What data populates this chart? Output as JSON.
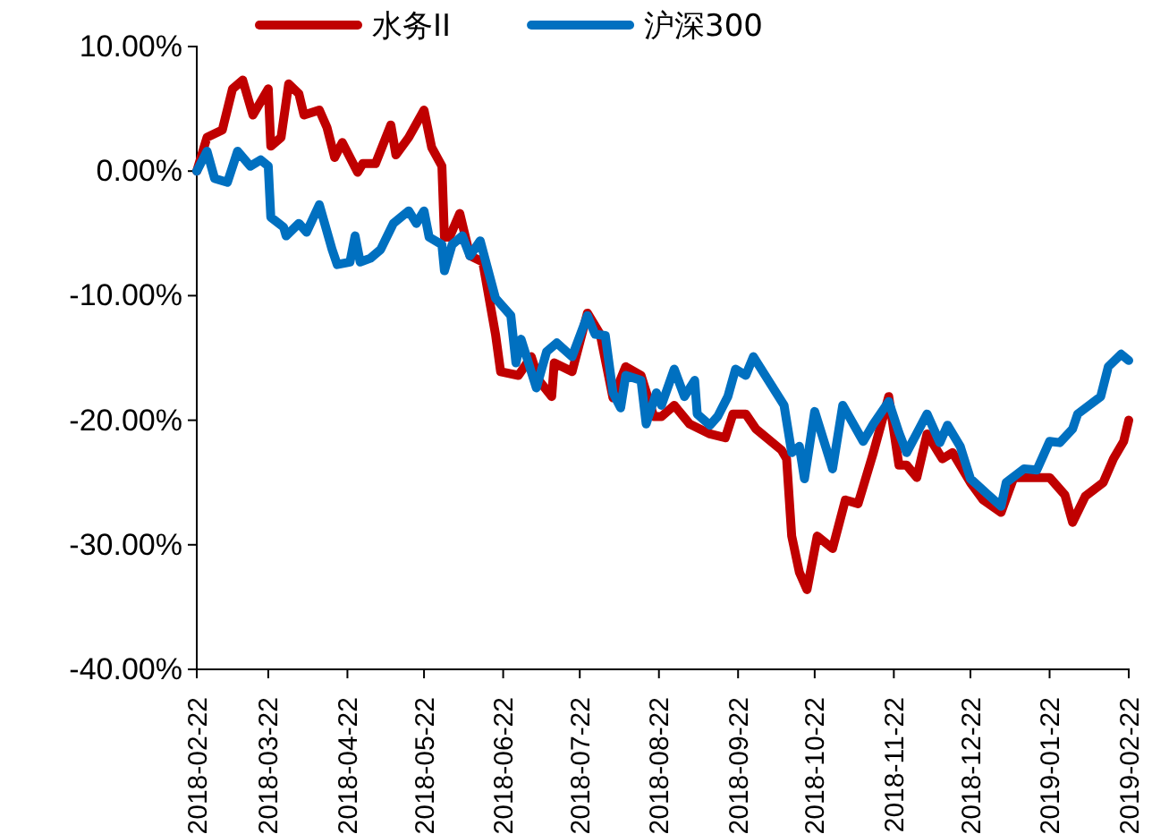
{
  "chart_data": {
    "type": "line",
    "xlim": [
      "2018-02-22",
      "2019-02-22"
    ],
    "xticks": [
      "2018-02-22",
      "2018-03-22",
      "2018-04-22",
      "2018-05-22",
      "2018-06-22",
      "2018-07-22",
      "2018-08-22",
      "2018-09-22",
      "2018-10-22",
      "2018-11-22",
      "2018-12-22",
      "2019-01-22",
      "2019-02-22"
    ],
    "ylim": [
      -40,
      10
    ],
    "yticks": [
      {
        "value": 10,
        "label": "10.00%"
      },
      {
        "value": 0,
        "label": "0.00%"
      },
      {
        "value": -10,
        "label": "-10.00%"
      },
      {
        "value": -20,
        "label": "-20.00%"
      },
      {
        "value": -30,
        "label": "-30.00%"
      },
      {
        "value": -40,
        "label": "-40.00%"
      }
    ],
    "grid": false,
    "legend": "top",
    "marker": "none",
    "line_style": "solid",
    "series": [
      {
        "name": "水务II",
        "color": "#c00000",
        "x": [
          "2018-02-22",
          "2018-02-26",
          "2018-03-04",
          "2018-03-08",
          "2018-03-12",
          "2018-03-16",
          "2018-03-22",
          "2018-03-23",
          "2018-03-27",
          "2018-03-30",
          "2018-04-03",
          "2018-04-05",
          "2018-04-11",
          "2018-04-14",
          "2018-04-17",
          "2018-04-20",
          "2018-04-26",
          "2018-04-28",
          "2018-05-03",
          "2018-05-09",
          "2018-05-11",
          "2018-05-16",
          "2018-05-22",
          "2018-05-25",
          "2018-05-29",
          "2018-05-30",
          "2018-06-01",
          "2018-06-05",
          "2018-06-09",
          "2018-06-14",
          "2018-06-19",
          "2018-06-21",
          "2018-06-28",
          "2018-07-03",
          "2018-07-06",
          "2018-07-11",
          "2018-07-12",
          "2018-07-19",
          "2018-07-25",
          "2018-07-30",
          "2018-08-04",
          "2018-08-09",
          "2018-08-15",
          "2018-08-20",
          "2018-08-23",
          "2018-08-28",
          "2018-09-03",
          "2018-09-11",
          "2018-09-17",
          "2018-09-20",
          "2018-09-25",
          "2018-09-29",
          "2018-10-09",
          "2018-10-11",
          "2018-10-13",
          "2018-10-16",
          "2018-10-19",
          "2018-10-23",
          "2018-10-29",
          "2018-11-03",
          "2018-11-08",
          "2018-11-14",
          "2018-11-20",
          "2018-11-24",
          "2018-11-27",
          "2018-12-01",
          "2018-12-05",
          "2018-12-11",
          "2018-12-15",
          "2018-12-22",
          "2018-12-27",
          "2019-01-03",
          "2019-01-08",
          "2019-01-22",
          "2019-01-28",
          "2019-01-31",
          "2019-02-05",
          "2019-02-12",
          "2019-02-16",
          "2019-02-20",
          "2019-02-22"
        ],
        "values": [
          0,
          2.7,
          3.3,
          6.6,
          7.3,
          4.5,
          6.6,
          2.0,
          2.7,
          7.0,
          6.2,
          4.5,
          4.9,
          3.5,
          1.1,
          2.3,
          -0.1,
          0.6,
          0.6,
          3.7,
          1.3,
          2.7,
          4.9,
          1.9,
          0.4,
          -5.3,
          -5.3,
          -3.4,
          -6.8,
          -7.3,
          -13.1,
          -16.1,
          -16.4,
          -14.9,
          -16.8,
          -18.1,
          -15.4,
          -16.1,
          -11.4,
          -13.1,
          -18.2,
          -15.7,
          -16.4,
          -19.7,
          -19.7,
          -18.8,
          -20.3,
          -21.1,
          -21.4,
          -19.5,
          -19.5,
          -20.7,
          -22.4,
          -23.1,
          -29.3,
          -32.2,
          -33.6,
          -29.3,
          -30.3,
          -26.4,
          -26.7,
          -22.6,
          -18.1,
          -23.6,
          -23.6,
          -24.6,
          -21.1,
          -23.1,
          -22.6,
          -25.0,
          -26.4,
          -27.4,
          -24.6,
          -24.6,
          -26.0,
          -28.2,
          -26.1,
          -25.0,
          -23.1,
          -21.7,
          -20.0
        ]
      },
      {
        "name": "沪深300",
        "color": "#0070c0",
        "x": [
          "2018-02-22",
          "2018-02-26",
          "2018-03-01",
          "2018-03-06",
          "2018-03-10",
          "2018-03-15",
          "2018-03-19",
          "2018-03-22",
          "2018-03-23",
          "2018-03-28",
          "2018-03-29",
          "2018-04-03",
          "2018-04-06",
          "2018-04-11",
          "2018-04-16",
          "2018-04-18",
          "2018-04-23",
          "2018-04-25",
          "2018-04-27",
          "2018-05-01",
          "2018-05-05",
          "2018-05-10",
          "2018-05-16",
          "2018-05-19",
          "2018-05-22",
          "2018-05-24",
          "2018-05-29",
          "2018-05-30",
          "2018-06-02",
          "2018-06-06",
          "2018-06-09",
          "2018-06-13",
          "2018-06-19",
          "2018-06-25",
          "2018-06-27",
          "2018-06-29",
          "2018-07-05",
          "2018-07-09",
          "2018-07-13",
          "2018-07-19",
          "2018-07-25",
          "2018-07-28",
          "2018-08-01",
          "2018-08-04",
          "2018-08-07",
          "2018-08-09",
          "2018-08-15",
          "2018-08-17",
          "2018-08-21",
          "2018-08-23",
          "2018-08-28",
          "2018-09-01",
          "2018-09-05",
          "2018-09-06",
          "2018-09-11",
          "2018-09-14",
          "2018-09-18",
          "2018-09-21",
          "2018-09-25",
          "2018-09-28",
          "2018-10-10",
          "2018-10-13",
          "2018-10-16",
          "2018-10-18",
          "2018-10-22",
          "2018-10-29",
          "2018-11-02",
          "2018-11-10",
          "2018-11-14",
          "2018-11-20",
          "2018-11-24",
          "2018-11-27",
          "2018-12-05",
          "2018-12-10",
          "2018-12-13",
          "2018-12-18",
          "2018-12-22",
          "2018-12-29",
          "2019-01-03",
          "2019-01-05",
          "2019-01-12",
          "2019-01-17",
          "2019-01-22",
          "2019-01-26",
          "2019-01-31",
          "2019-02-02",
          "2019-02-11",
          "2019-02-14",
          "2019-02-19",
          "2019-02-22"
        ],
        "values": [
          0,
          1.6,
          -0.6,
          -0.9,
          1.6,
          0.4,
          0.9,
          0.4,
          -3.7,
          -4.5,
          -5.2,
          -4.2,
          -4.9,
          -2.7,
          -6.3,
          -7.5,
          -7.3,
          -5.2,
          -7.3,
          -7.0,
          -6.3,
          -4.2,
          -3.2,
          -4.2,
          -3.2,
          -5.3,
          -5.9,
          -8.0,
          -5.9,
          -5.2,
          -6.8,
          -5.6,
          -10.2,
          -11.6,
          -15.4,
          -13.5,
          -17.4,
          -14.5,
          -13.8,
          -14.9,
          -11.6,
          -13.1,
          -13.2,
          -17.8,
          -19.0,
          -16.4,
          -16.8,
          -20.3,
          -17.8,
          -18.8,
          -15.9,
          -18.1,
          -16.8,
          -19.5,
          -20.4,
          -19.7,
          -18.1,
          -15.9,
          -16.4,
          -14.9,
          -18.8,
          -22.6,
          -22.1,
          -24.7,
          -19.3,
          -23.9,
          -18.8,
          -21.7,
          -20.3,
          -18.5,
          -21.0,
          -22.6,
          -19.5,
          -21.8,
          -20.4,
          -22.1,
          -24.7,
          -26.0,
          -26.9,
          -25.0,
          -23.9,
          -24.0,
          -21.7,
          -21.8,
          -20.7,
          -19.5,
          -18.1,
          -15.7,
          -14.7,
          -15.2
        ]
      }
    ]
  }
}
